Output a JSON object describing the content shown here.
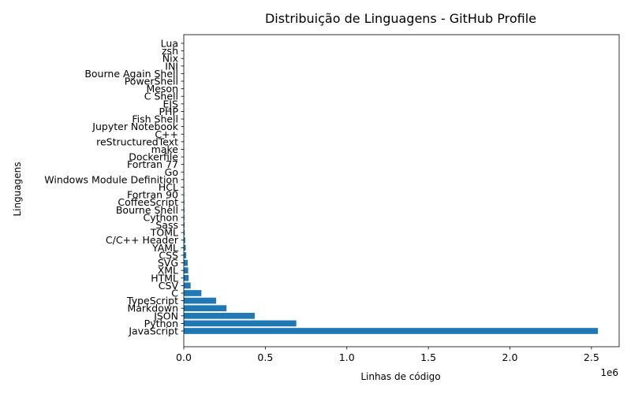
{
  "chart_data": {
    "type": "bar",
    "orientation": "horizontal",
    "title": "Distribuição de Linguagens - GitHub Profile",
    "xlabel": "Linhas de código",
    "ylabel": "Linguagens",
    "x_offset_label": "1e6",
    "xlim": [
      0,
      2.67
    ],
    "x_ticks": [
      0,
      0.5,
      1.0,
      1.5,
      2.0,
      2.5
    ],
    "x_tick_labels": [
      "0.0",
      "0.5",
      "1.0",
      "1.5",
      "2.0",
      "2.5"
    ],
    "units_multiplier": 1000000,
    "bar_color": "#1f77b4",
    "grid": false,
    "categories": [
      "JavaScript",
      "Python",
      "JSON",
      "Markdown",
      "TypeScript",
      "C",
      "CSV",
      "HTML",
      "XML",
      "SVG",
      "CSS",
      "YAML",
      "C/C++ Header",
      "TOML",
      "Sass",
      "Cython",
      "Bourne Shell",
      "CoffeeScript",
      "Fortran 90",
      "HCL",
      "Windows Module Definition",
      "Go",
      "Fortran 77",
      "Dockerfile",
      "make",
      "reStructuredText",
      "C++",
      "Jupyter Notebook",
      "Fish Shell",
      "PHP",
      "EJS",
      "C Shell",
      "Meson",
      "PowerShell",
      "Bourne Again Shell",
      "INI",
      "Nix",
      "zsh",
      "Lua"
    ],
    "values": [
      2540000,
      690000,
      435000,
      262000,
      198000,
      108000,
      42000,
      30000,
      27000,
      24000,
      15000,
      12000,
      9000,
      6000,
      5000,
      4500,
      4000,
      3500,
      3000,
      2500,
      2200,
      2000,
      1800,
      1600,
      1400,
      1200,
      1000,
      900,
      800,
      700,
      600,
      500,
      450,
      400,
      350,
      300,
      250,
      200,
      150
    ]
  }
}
